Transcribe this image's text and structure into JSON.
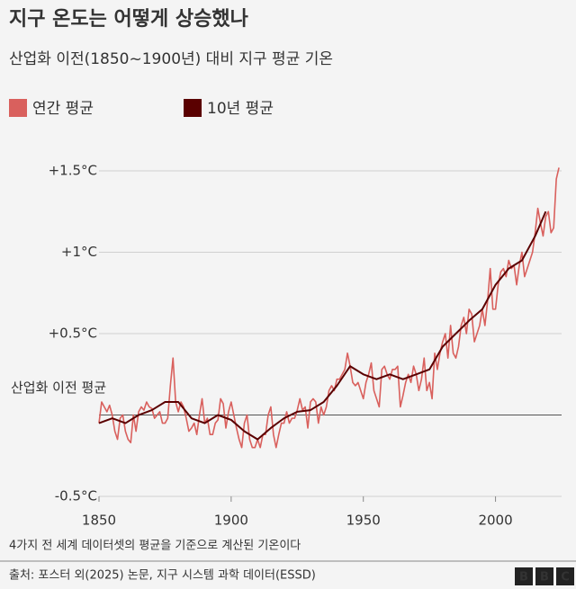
{
  "chart_data": {
    "type": "line",
    "title": "지구 온도는 어떻게 상승했나",
    "subtitle": "산업화 이전(1850~1900년)  대비 지구 평균 기온",
    "note": "4가지 전 세계 데이터셋의 평균을 기준으로 계산된 기온이다",
    "source": "출처: 포스터 외(2025) 논문, 지구 시스템 과학 데이터(ESSD)",
    "logo": [
      "B",
      "B",
      "C"
    ],
    "xlim": [
      1850,
      2025
    ],
    "xticks": [
      1850,
      1900,
      1950,
      2000
    ],
    "ylim": [
      -0.5,
      1.55
    ],
    "yticks": [
      {
        "value": -0.5,
        "label": "-0.5°C"
      },
      {
        "value": 0,
        "label": "산업화 이전 평균"
      },
      {
        "value": 0.5,
        "label": "+0.5°C"
      },
      {
        "value": 1,
        "label": "+1°C"
      },
      {
        "value": 1.5,
        "label": "+1.5°C"
      }
    ],
    "grid": true,
    "series": [
      {
        "name": "연간 평균",
        "color": "#d9605d",
        "x": [
          1850,
          1851,
          1852,
          1853,
          1854,
          1855,
          1856,
          1857,
          1858,
          1859,
          1860,
          1861,
          1862,
          1863,
          1864,
          1865,
          1866,
          1867,
          1868,
          1869,
          1870,
          1871,
          1872,
          1873,
          1874,
          1875,
          1876,
          1877,
          1878,
          1879,
          1880,
          1881,
          1882,
          1883,
          1884,
          1885,
          1886,
          1887,
          1888,
          1889,
          1890,
          1891,
          1892,
          1893,
          1894,
          1895,
          1896,
          1897,
          1898,
          1899,
          1900,
          1901,
          1902,
          1903,
          1904,
          1905,
          1906,
          1907,
          1908,
          1909,
          1910,
          1911,
          1912,
          1913,
          1914,
          1915,
          1916,
          1917,
          1918,
          1919,
          1920,
          1921,
          1922,
          1923,
          1924,
          1925,
          1926,
          1927,
          1928,
          1929,
          1930,
          1931,
          1932,
          1933,
          1934,
          1935,
          1936,
          1937,
          1938,
          1939,
          1940,
          1941,
          1942,
          1943,
          1944,
          1945,
          1946,
          1947,
          1948,
          1949,
          1950,
          1951,
          1952,
          1953,
          1954,
          1955,
          1956,
          1957,
          1958,
          1959,
          1960,
          1961,
          1962,
          1963,
          1964,
          1965,
          1966,
          1967,
          1968,
          1969,
          1970,
          1971,
          1972,
          1973,
          1974,
          1975,
          1976,
          1977,
          1978,
          1979,
          1980,
          1981,
          1982,
          1983,
          1984,
          1985,
          1986,
          1987,
          1988,
          1989,
          1990,
          1991,
          1992,
          1993,
          1994,
          1995,
          1996,
          1997,
          1998,
          1999,
          2000,
          2001,
          2002,
          2003,
          2004,
          2005,
          2006,
          2007,
          2008,
          2009,
          2010,
          2011,
          2012,
          2013,
          2014,
          2015,
          2016,
          2017,
          2018,
          2019,
          2020,
          2021,
          2022,
          2023,
          2024
        ],
        "values": [
          -0.05,
          0.08,
          0.05,
          0.02,
          0.06,
          0.0,
          -0.1,
          -0.15,
          -0.02,
          0.0,
          -0.1,
          -0.15,
          -0.17,
          0.0,
          -0.1,
          0.02,
          0.05,
          0.03,
          0.08,
          0.05,
          0.04,
          -0.02,
          0.0,
          0.02,
          -0.05,
          -0.05,
          -0.02,
          0.18,
          0.35,
          0.08,
          0.02,
          0.08,
          0.05,
          -0.02,
          -0.1,
          -0.08,
          -0.05,
          -0.12,
          0.0,
          0.1,
          -0.05,
          -0.02,
          -0.12,
          -0.12,
          -0.05,
          -0.03,
          0.1,
          0.07,
          -0.08,
          0.02,
          0.08,
          0.0,
          -0.08,
          -0.15,
          -0.2,
          -0.05,
          0.0,
          -0.15,
          -0.2,
          -0.2,
          -0.15,
          -0.2,
          -0.12,
          -0.12,
          0.0,
          0.05,
          -0.12,
          -0.2,
          -0.12,
          -0.05,
          -0.05,
          0.02,
          -0.05,
          -0.02,
          -0.02,
          0.03,
          0.1,
          0.03,
          0.05,
          -0.08,
          0.08,
          0.1,
          0.08,
          -0.05,
          0.05,
          0.0,
          0.05,
          0.15,
          0.18,
          0.15,
          0.22,
          0.22,
          0.25,
          0.28,
          0.38,
          0.3,
          0.2,
          0.18,
          0.2,
          0.15,
          0.1,
          0.2,
          0.25,
          0.32,
          0.15,
          0.1,
          0.05,
          0.28,
          0.3,
          0.25,
          0.22,
          0.28,
          0.28,
          0.3,
          0.05,
          0.12,
          0.2,
          0.25,
          0.2,
          0.3,
          0.25,
          0.15,
          0.22,
          0.35,
          0.15,
          0.2,
          0.1,
          0.38,
          0.28,
          0.38,
          0.45,
          0.5,
          0.35,
          0.55,
          0.38,
          0.35,
          0.42,
          0.55,
          0.6,
          0.5,
          0.65,
          0.62,
          0.45,
          0.5,
          0.55,
          0.65,
          0.55,
          0.7,
          0.9,
          0.65,
          0.65,
          0.8,
          0.88,
          0.9,
          0.85,
          0.95,
          0.9,
          0.92,
          0.8,
          0.92,
          1.0,
          0.85,
          0.9,
          0.95,
          1.0,
          1.12,
          1.27,
          1.18,
          1.1,
          1.22,
          1.25,
          1.12,
          1.15,
          1.45,
          1.52
        ]
      },
      {
        "name": "10년 평균",
        "color": "#5a0000",
        "x": [
          1850,
          1855,
          1860,
          1865,
          1870,
          1875,
          1880,
          1885,
          1890,
          1895,
          1900,
          1905,
          1910,
          1915,
          1920,
          1925,
          1930,
          1935,
          1940,
          1945,
          1950,
          1955,
          1960,
          1965,
          1970,
          1975,
          1980,
          1985,
          1990,
          1995,
          2000,
          2005,
          2010,
          2015,
          2019
        ],
        "values": [
          -0.05,
          -0.02,
          -0.05,
          0.0,
          0.03,
          0.08,
          0.08,
          -0.02,
          -0.05,
          0.0,
          -0.03,
          -0.1,
          -0.15,
          -0.08,
          -0.02,
          0.02,
          0.03,
          0.08,
          0.18,
          0.3,
          0.25,
          0.22,
          0.25,
          0.22,
          0.25,
          0.28,
          0.42,
          0.5,
          0.58,
          0.65,
          0.8,
          0.9,
          0.95,
          1.1,
          1.25
        ]
      }
    ]
  }
}
